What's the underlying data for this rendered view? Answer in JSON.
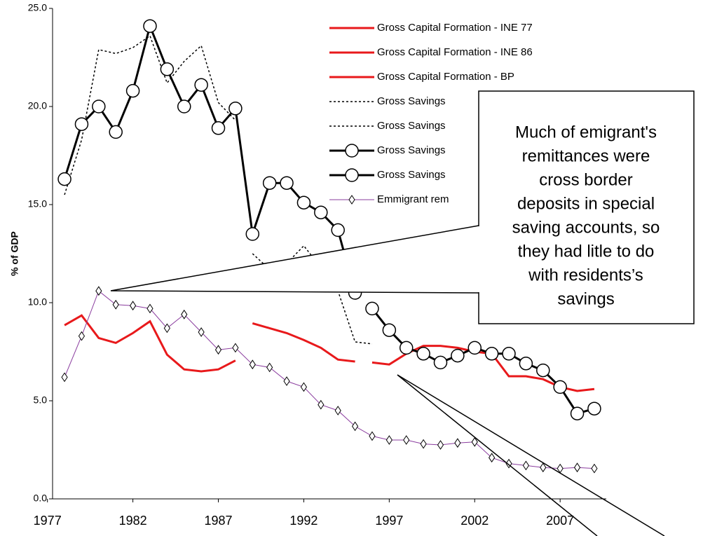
{
  "chart_data": {
    "type": "line",
    "y_label": "% of GDP",
    "x": [
      1978,
      1979,
      1980,
      1981,
      1982,
      1983,
      1984,
      1985,
      1986,
      1987,
      1988,
      1989,
      1990,
      1991,
      1992,
      1993,
      1994,
      1995,
      1996,
      1997,
      1998,
      1999,
      2000,
      2001,
      2002,
      2003,
      2004,
      2005,
      2006,
      2007,
      2008,
      2009
    ],
    "xlim": [
      1977.3,
      2009.7
    ],
    "xticks": [
      1977,
      1982,
      1987,
      1992,
      1997,
      2002,
      2007
    ],
    "ylim": [
      0,
      25
    ],
    "yticks": [
      {
        "value": 0,
        "label": "0.0"
      },
      {
        "value": 5,
        "label": "5.0"
      },
      {
        "value": 10,
        "label": "10.0"
      },
      {
        "value": 15,
        "label": "15.0"
      },
      {
        "value": 20,
        "label": "20.0"
      },
      {
        "value": 25,
        "label": "25.0"
      }
    ],
    "grid": false,
    "legend": "top-right",
    "series": [
      {
        "name": "Gross Capital Formation - INE 77",
        "color": "#e8191b",
        "dash": "solid",
        "marker": "none",
        "values": [
          8.85,
          9.35,
          8.2,
          7.95,
          8.45,
          9.05,
          7.35,
          6.6,
          6.5,
          6.6,
          7.05,
          null,
          null,
          null,
          null,
          null,
          null,
          null,
          null,
          null,
          null,
          null,
          null,
          null,
          null,
          null,
          null,
          null,
          null,
          null,
          null,
          null
        ]
      },
      {
        "name": "Gross Capital Formation - INE 86",
        "color": "#e8191b",
        "dash": "solid",
        "marker": "none",
        "values": [
          null,
          null,
          null,
          null,
          null,
          null,
          null,
          null,
          null,
          null,
          null,
          8.95,
          8.7,
          8.45,
          8.1,
          7.7,
          7.1,
          7.0,
          null,
          null,
          null,
          null,
          null,
          null,
          null,
          null,
          null,
          null,
          null,
          null,
          null,
          null
        ]
      },
      {
        "name": "Gross Capital Formation - BP",
        "color": "#e8191b",
        "dash": "solid",
        "marker": "none",
        "values": [
          null,
          null,
          null,
          null,
          null,
          null,
          null,
          null,
          null,
          null,
          null,
          null,
          null,
          null,
          null,
          null,
          null,
          null,
          6.95,
          6.85,
          7.4,
          7.8,
          7.8,
          7.7,
          7.5,
          7.4,
          6.25,
          6.25,
          6.1,
          5.7,
          5.5,
          5.6
        ]
      },
      {
        "name": "Gross Savings",
        "color": "#000000",
        "dash": "dotted",
        "marker": "none",
        "values": [
          15.5,
          18.3,
          22.9,
          22.7,
          23.0,
          23.6,
          21.2,
          22.3,
          23.1,
          20.2,
          19.3,
          null,
          null,
          null,
          null,
          null,
          null,
          null,
          null,
          null,
          null,
          null,
          null,
          null,
          null,
          null,
          null,
          null,
          null,
          null,
          null,
          null
        ]
      },
      {
        "name": "Gross Savings",
        "color": "#000000",
        "dash": "dotted",
        "marker": "none",
        "values": [
          null,
          null,
          null,
          null,
          null,
          null,
          null,
          null,
          null,
          null,
          null,
          12.5,
          11.7,
          12.0,
          12.9,
          11.8,
          10.6,
          8.0,
          7.9,
          null,
          null,
          null,
          null,
          null,
          null,
          null,
          null,
          null,
          null,
          null,
          null,
          null
        ]
      },
      {
        "name": "Gross Savings",
        "color": "#000000",
        "dash": "solid",
        "marker": "circle",
        "values": [
          16.3,
          19.1,
          20.0,
          18.7,
          20.8,
          24.1,
          21.9,
          20.0,
          21.1,
          18.9,
          19.9,
          13.5,
          16.1,
          16.1,
          15.1,
          14.6,
          13.7,
          10.5,
          null,
          null,
          null,
          null,
          null,
          null,
          null,
          null,
          null,
          null,
          null,
          null,
          null,
          null
        ]
      },
      {
        "name": "Gross Savings",
        "color": "#000000",
        "dash": "solid",
        "marker": "circle",
        "values": [
          null,
          null,
          null,
          null,
          null,
          null,
          null,
          null,
          null,
          null,
          null,
          null,
          null,
          null,
          null,
          null,
          null,
          null,
          9.7,
          8.6,
          7.7,
          7.4,
          6.95,
          7.3,
          7.7,
          7.4,
          7.4,
          6.9,
          6.55,
          5.7,
          4.35,
          4.6
        ]
      },
      {
        "name": "Emmigrant rem",
        "color": "#8a3c9e",
        "dash": "solid",
        "marker": "diamond",
        "values": [
          6.2,
          8.3,
          10.6,
          9.9,
          9.85,
          9.7,
          8.7,
          9.4,
          8.5,
          7.6,
          7.7,
          6.85,
          6.7,
          6.0,
          5.7,
          4.8,
          4.5,
          3.7,
          3.2,
          3.0,
          3.0,
          2.8,
          2.75,
          2.85,
          2.9,
          2.1,
          1.8,
          1.7,
          1.6,
          1.55,
          1.6,
          1.55
        ]
      }
    ],
    "annotation_lines": [
      "Much of emigrant's",
      "remittances were",
      "cross border",
      "deposits in special",
      "saving accounts, so",
      "they had litle to do",
      "with residents’s",
      "savings"
    ]
  }
}
